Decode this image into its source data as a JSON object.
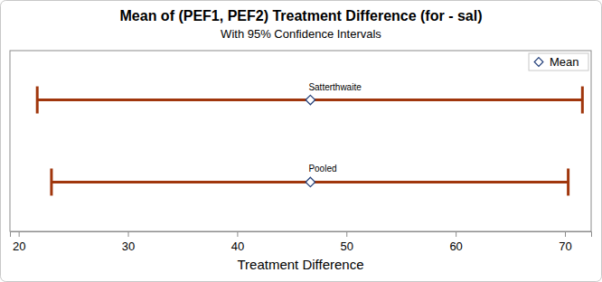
{
  "chart_data": {
    "type": "interval",
    "title": "Mean of (PEF1, PEF2) Treatment Difference (for - sal)",
    "subtitle": "With 95% Confidence Intervals",
    "xlabel": "Treatment Difference",
    "categories": [
      "Satterthwaite",
      "Pooled"
    ],
    "values": [
      46.7,
      46.7
    ],
    "lower": [
      21.7,
      23.0
    ],
    "upper": [
      71.6,
      70.3
    ],
    "series_name": "Mean",
    "color": "#a0360c",
    "marker": "diamond",
    "xlim": [
      19.2,
      72.4
    ],
    "xticks": [
      20,
      30,
      40,
      50,
      60,
      70
    ],
    "legend": "top-right",
    "tick_labels": "x"
  }
}
